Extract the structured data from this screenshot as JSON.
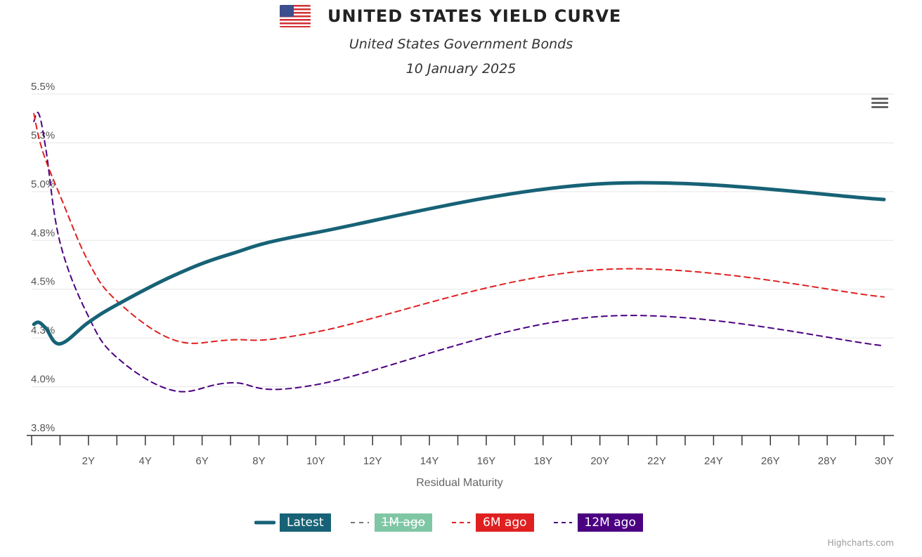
{
  "header": {
    "title": "UNITED STATES YIELD CURVE",
    "subtitle": "United States Government Bonds",
    "date": "10 January 2025",
    "flag_icon": "us-flag-icon"
  },
  "menu": {
    "icon": "hamburger-menu-icon"
  },
  "credits": "Highcharts.com",
  "chart_data": {
    "type": "line",
    "title": "UNITED STATES YIELD CURVE",
    "subtitle": "United States Government Bonds",
    "xlabel": "Residual Maturity",
    "ylabel": "",
    "xlim": [
      0,
      30
    ],
    "ylim": [
      3.75,
      5.5
    ],
    "x_ticks": [
      2,
      4,
      6,
      8,
      10,
      12,
      14,
      16,
      18,
      20,
      22,
      24,
      26,
      28,
      30
    ],
    "x_tick_labels": [
      "2Y",
      "4Y",
      "6Y",
      "8Y",
      "10Y",
      "12Y",
      "14Y",
      "16Y",
      "18Y",
      "20Y",
      "22Y",
      "24Y",
      "26Y",
      "28Y",
      "30Y"
    ],
    "y_ticks": [
      3.75,
      4.0,
      4.25,
      4.5,
      4.75,
      5.0,
      5.25,
      5.5
    ],
    "y_tick_labels": [
      "3.8%",
      "4.0%",
      "4.3%",
      "4.5%",
      "4.8%",
      "5.0%",
      "5.3%",
      "5.5%"
    ],
    "grid": true,
    "legend_position": "bottom-center",
    "series": [
      {
        "name": "Latest",
        "color": "#176276",
        "style": "solid",
        "x": [
          0.08,
          0.25,
          0.5,
          1,
          2,
          3,
          5,
          7,
          10,
          20,
          30
        ],
        "y": [
          4.32,
          4.33,
          4.3,
          4.22,
          4.33,
          4.42,
          4.57,
          4.68,
          4.79,
          5.04,
          4.96
        ]
      },
      {
        "name": "1M ago",
        "color": "#7fc6a4",
        "style": "dashed",
        "x": [],
        "y": []
      },
      {
        "name": "6M ago",
        "color": "#e02020",
        "style": "dashed",
        "x": [
          0.08,
          0.25,
          0.5,
          1,
          2,
          3,
          5,
          7,
          10,
          20,
          30
        ],
        "y": [
          5.4,
          5.28,
          5.16,
          4.98,
          4.64,
          4.44,
          4.24,
          4.24,
          4.28,
          4.6,
          4.46
        ]
      },
      {
        "name": "12M ago",
        "color": "#4b0082",
        "style": "dashed",
        "x": [
          0.08,
          0.25,
          0.5,
          1,
          2,
          3,
          5,
          7,
          10,
          20,
          30
        ],
        "y": [
          5.36,
          5.4,
          5.22,
          4.74,
          4.36,
          4.15,
          3.98,
          4.02,
          4.01,
          4.36,
          4.21
        ]
      }
    ]
  }
}
